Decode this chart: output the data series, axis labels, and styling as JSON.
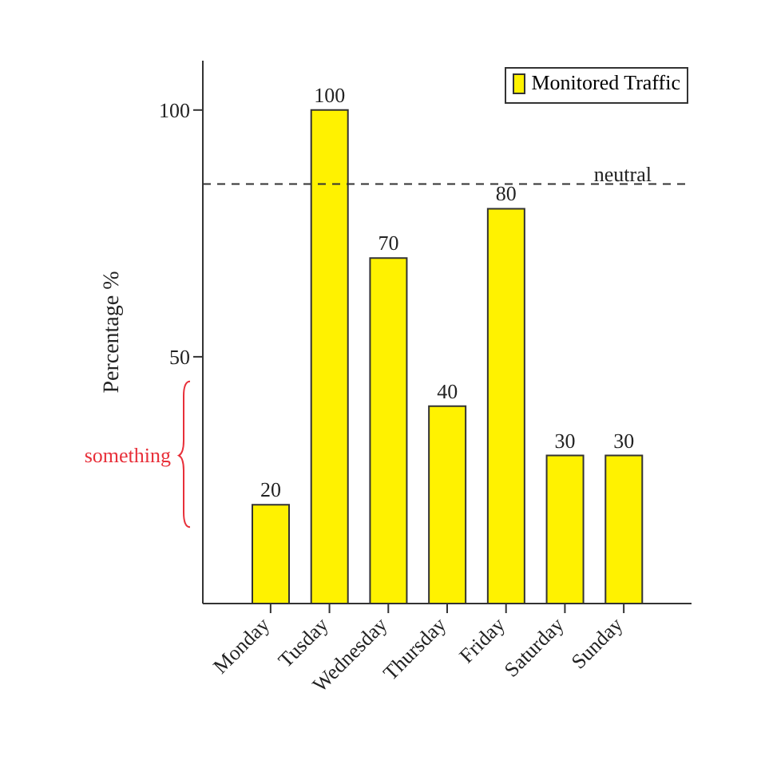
{
  "chart_data": {
    "type": "bar",
    "ylabel": "Percentage %",
    "categories": [
      "Monday",
      "Tusday",
      "Wednesday",
      "Thursday",
      "Friday",
      "Saturday",
      "Sunday"
    ],
    "series": [
      {
        "name": "Monitored Traffic",
        "color": "#fff200",
        "values": [
          20,
          100,
          70,
          40,
          80,
          30,
          30
        ]
      }
    ],
    "ylim": [
      0,
      110
    ],
    "yticks": [
      50,
      100
    ],
    "grid": false,
    "legend": "top right",
    "data_labels": true,
    "ref_lines": [
      {
        "axis": "y",
        "value": 85,
        "label": "neutral",
        "color": "#333333",
        "line_style": "dashed"
      }
    ],
    "annotations": [
      "something"
    ]
  }
}
